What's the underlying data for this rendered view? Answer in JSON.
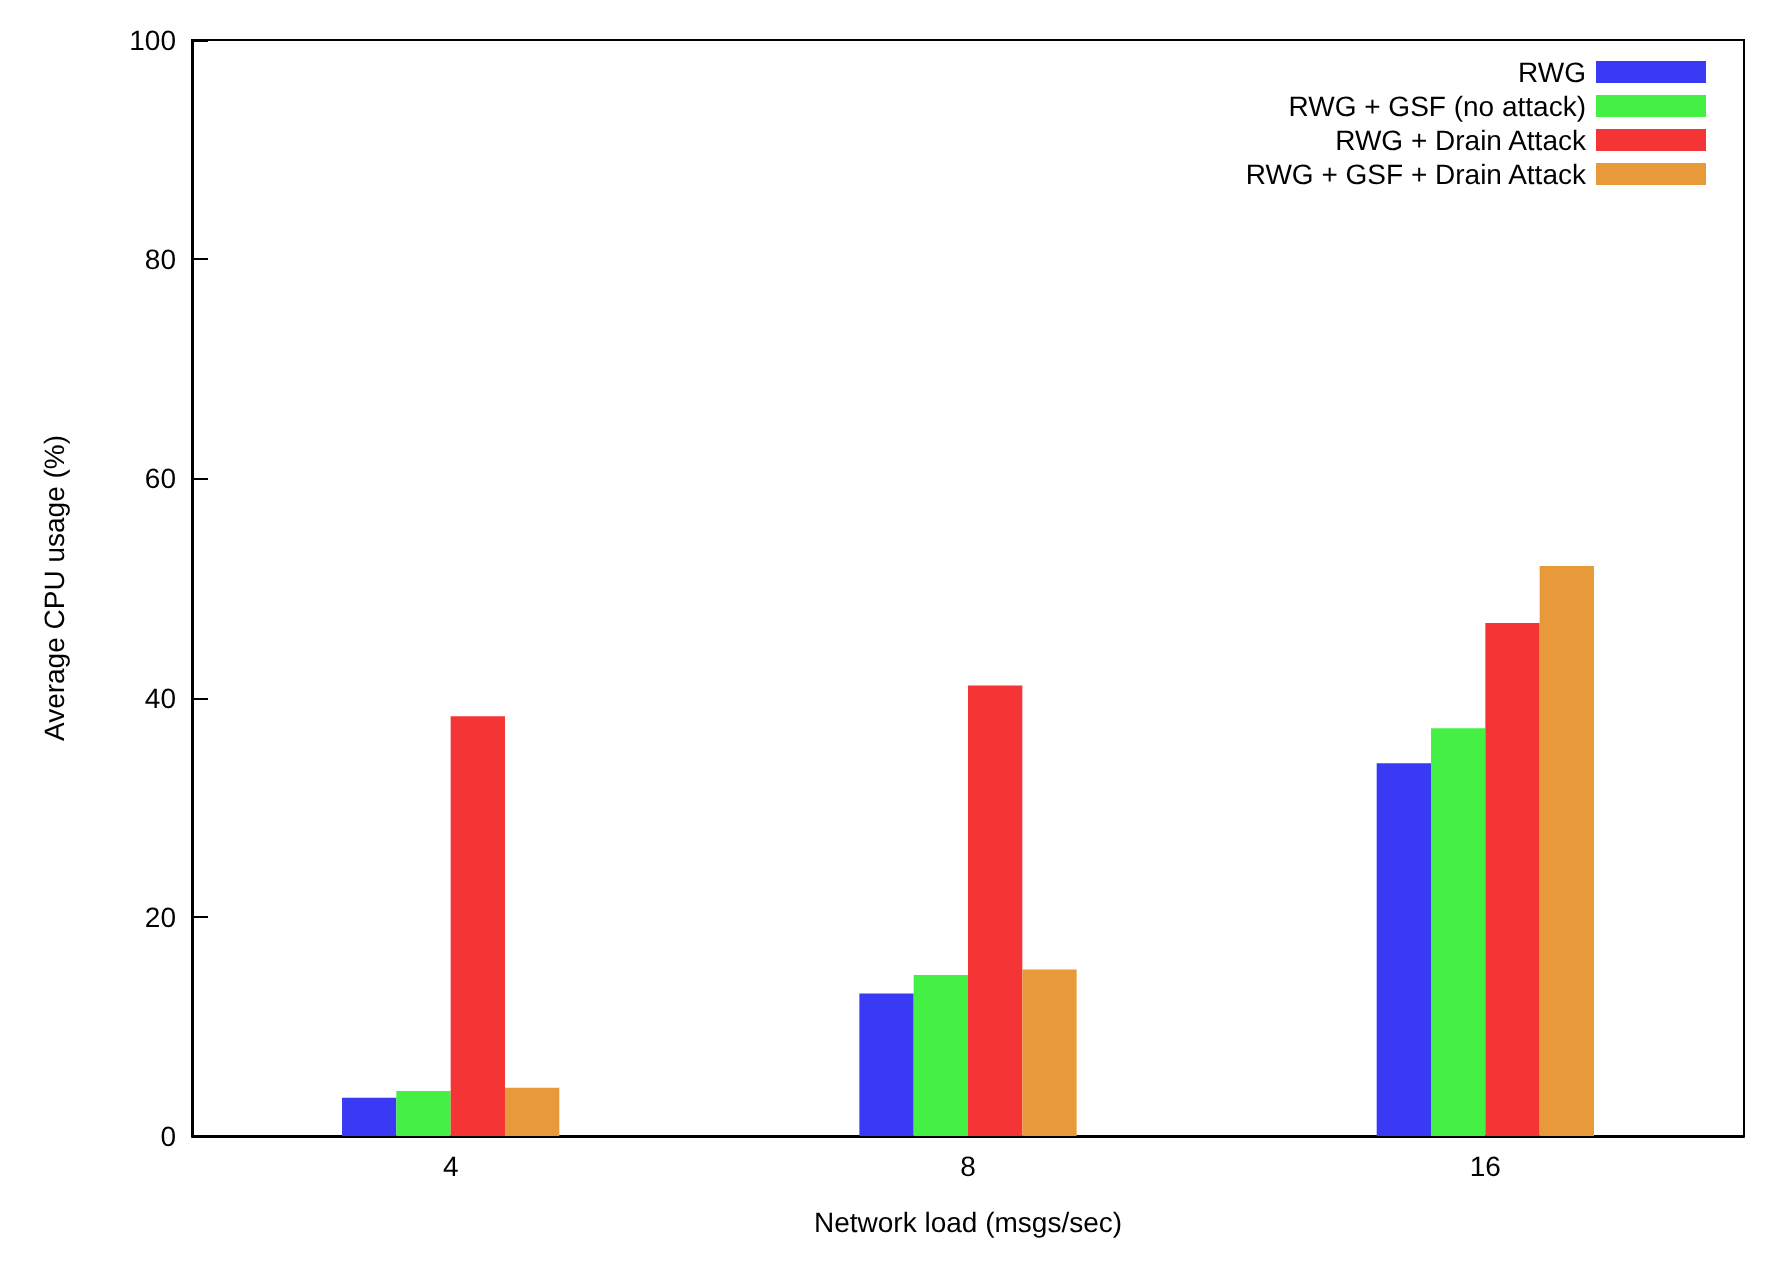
{
  "chart_data": {
    "type": "bar",
    "xlabel": "Network load (msgs/sec)",
    "ylabel": "Average CPU usage (%)",
    "categories": [
      "4",
      "8",
      "16"
    ],
    "series": [
      {
        "name": "RWG",
        "color": "#3a3af5",
        "values": [
          3.5,
          13,
          34
        ]
      },
      {
        "name": "RWG + GSF (no attack)",
        "color": "#44f044",
        "values": [
          4.1,
          14.7,
          37.2
        ]
      },
      {
        "name": "RWG + Drain Attack",
        "color": "#f53535",
        "values": [
          38.3,
          41.1,
          46.8
        ]
      },
      {
        "name": "RWG + GSF + Drain Attack",
        "color": "#e89a3a",
        "values": [
          4.4,
          15.2,
          52
        ]
      }
    ],
    "ylim": [
      0,
      100
    ],
    "yticks": [
      0,
      20,
      40,
      60,
      80,
      100
    ],
    "grid": false,
    "legend": "top right"
  }
}
